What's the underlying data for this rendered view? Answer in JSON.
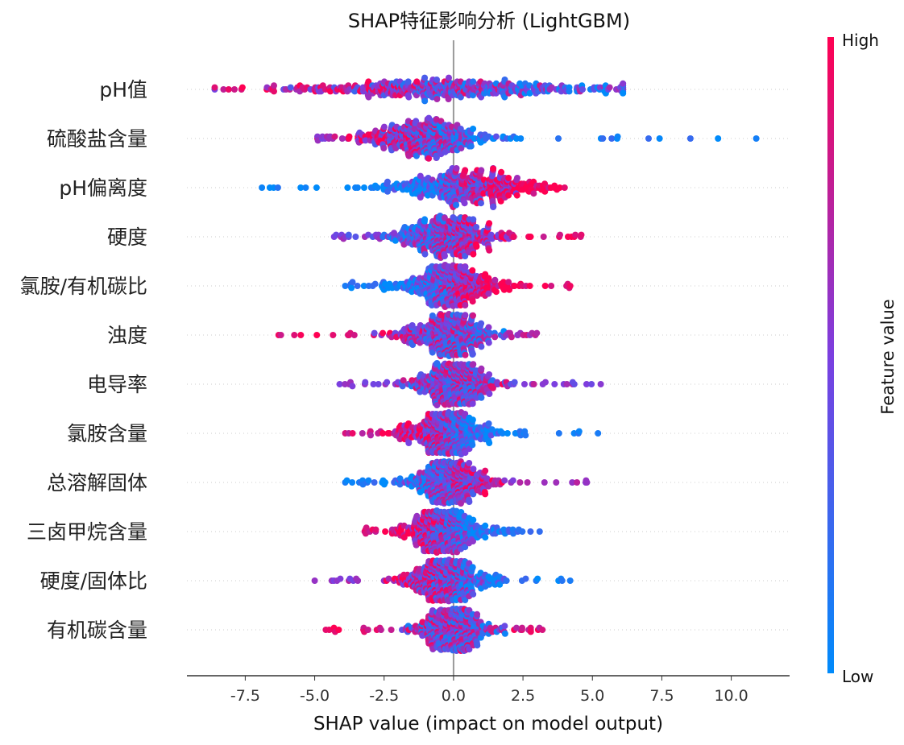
{
  "chart_data": {
    "type": "scatter",
    "subtype": "beeswarm",
    "title": "SHAP特征影响分析 (LightGBM)",
    "xlabel": "SHAP value (impact on model output)",
    "xlim": [
      -9.6,
      12.1
    ],
    "xticks": [
      {
        "value": -7.5,
        "label": "-7.5"
      },
      {
        "value": -5.0,
        "label": "-5.0"
      },
      {
        "value": -2.5,
        "label": "-2.5"
      },
      {
        "value": 0.0,
        "label": "0.0"
      },
      {
        "value": 2.5,
        "label": "2.5"
      },
      {
        "value": 5.0,
        "label": "5.0"
      },
      {
        "value": 7.5,
        "label": "7.5"
      },
      {
        "value": 10.0,
        "label": "10.0"
      }
    ],
    "colorbar": {
      "title": "Feature value",
      "high_label": "High",
      "low_label": "Low",
      "high_color": "#ff0052",
      "mid_color": "#7b3fe0",
      "low_color": "#008bfb"
    },
    "features": [
      {
        "name": "pH值",
        "low_extreme": -8.6,
        "high_extreme": 6.1,
        "spread": 6.5,
        "center": -0.1,
        "low_tail_value": 0.88,
        "high_tail_value": 0.55
      },
      {
        "name": "硫酸盐含量",
        "low_extreme": -4.9,
        "high_extreme": 10.9,
        "spread": 2.6,
        "center": -1.0,
        "low_tail_value": 0.55,
        "high_tail_value": 0.08
      },
      {
        "name": "pH偏离度",
        "low_extreme": -6.9,
        "high_extreme": 4.0,
        "spread": 3.2,
        "center": 0.3,
        "low_tail_value": 0.05,
        "high_tail_value": 0.9
      },
      {
        "name": "硬度",
        "low_extreme": -4.3,
        "high_extreme": 4.6,
        "spread": 2.2,
        "center": -0.3,
        "low_tail_value": 0.5,
        "high_tail_value": 0.9
      },
      {
        "name": "氯胺/有机碳比",
        "low_extreme": -3.9,
        "high_extreme": 4.2,
        "spread": 2.1,
        "center": -0.2,
        "low_tail_value": 0.1,
        "high_tail_value": 0.95
      },
      {
        "name": "浊度",
        "low_extreme": -6.3,
        "high_extreme": 3.0,
        "spread": 1.9,
        "center": -0.2,
        "low_tail_value": 0.95,
        "high_tail_value": 0.7
      },
      {
        "name": "电导率",
        "low_extreme": -4.1,
        "high_extreme": 5.3,
        "spread": 1.8,
        "center": 0.0,
        "low_tail_value": 0.5,
        "high_tail_value": 0.55
      },
      {
        "name": "氯胺含量",
        "low_extreme": -3.9,
        "high_extreme": 5.2,
        "spread": 1.9,
        "center": -0.3,
        "low_tail_value": 0.85,
        "high_tail_value": 0.1
      },
      {
        "name": "总溶解固体",
        "low_extreme": -3.9,
        "high_extreme": 4.8,
        "spread": 1.8,
        "center": -0.2,
        "low_tail_value": 0.1,
        "high_tail_value": 0.6
      },
      {
        "name": "三卤甲烷含量",
        "low_extreme": -3.2,
        "high_extreme": 3.1,
        "spread": 1.8,
        "center": -0.3,
        "low_tail_value": 0.85,
        "high_tail_value": 0.2
      },
      {
        "name": "硬度/固体比",
        "low_extreme": -5.0,
        "high_extreme": 4.2,
        "spread": 1.8,
        "center": -0.3,
        "low_tail_value": 0.6,
        "high_tail_value": 0.1
      },
      {
        "name": "有机碳含量",
        "low_extreme": -4.6,
        "high_extreme": 3.2,
        "spread": 1.6,
        "center": 0.0,
        "low_tail_value": 0.9,
        "high_tail_value": 0.85
      }
    ]
  }
}
